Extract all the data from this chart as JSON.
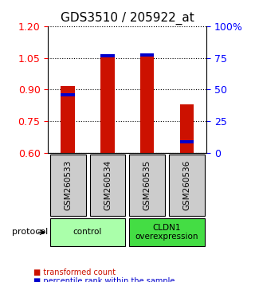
{
  "title": "GDS3510 / 205922_at",
  "samples": [
    "GSM260533",
    "GSM260534",
    "GSM260535",
    "GSM260536"
  ],
  "red_values": [
    0.915,
    1.065,
    1.068,
    0.83
  ],
  "blue_values": [
    0.875,
    1.06,
    1.063,
    0.655
  ],
  "ylim_left": [
    0.6,
    1.2
  ],
  "yticks_left": [
    0.6,
    0.75,
    0.9,
    1.05,
    1.2
  ],
  "yticks_right": [
    0,
    25,
    50,
    75,
    100
  ],
  "ylim_right": [
    0,
    100
  ],
  "bar_width": 0.35,
  "red_color": "#CC1100",
  "blue_color": "#0000CC",
  "groups": [
    {
      "label": "control",
      "samples": [
        0,
        1
      ],
      "color": "#AAFFAA"
    },
    {
      "label": "CLDN1\noverexpression",
      "samples": [
        2,
        3
      ],
      "color": "#44DD44"
    }
  ],
  "protocol_label": "protocol",
  "legend_red": "transformed count",
  "legend_blue": "percentile rank within the sample",
  "grid_color": "#000000",
  "sample_box_color": "#CCCCCC",
  "title_fontsize": 11,
  "tick_fontsize": 9,
  "label_fontsize": 9
}
